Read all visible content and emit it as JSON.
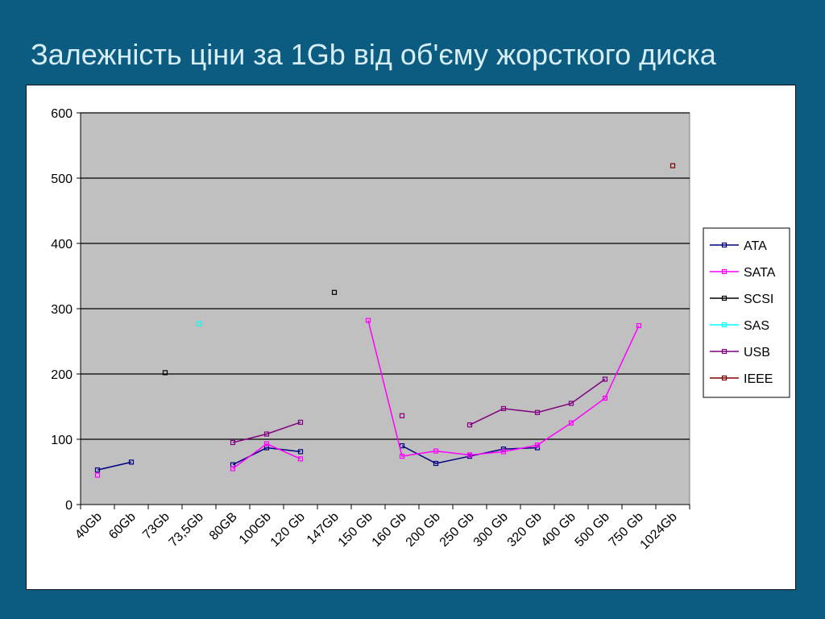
{
  "slide": {
    "title": "Залежність ціни за 1Gb  від об'єму жорсткого диска"
  },
  "chart_data": {
    "type": "line",
    "categories": [
      "40Gb",
      "60Gb",
      "73Gb",
      "73,5Gb",
      "80GB",
      "100Gb",
      "120 Gb",
      "147Gb",
      "150 Gb",
      "160 Gb",
      "200 Gb",
      "250 Gb",
      "300 Gb",
      "320 Gb",
      "400 Gb",
      "500 Gb",
      "750 Gb",
      "1024Gb"
    ],
    "ylim": [
      0,
      600
    ],
    "y_ticks": [
      0,
      100,
      200,
      300,
      400,
      500,
      600
    ],
    "grid": true,
    "plot_background": "#c0c0c0",
    "legend_position": "right",
    "series": [
      {
        "name": "ATA",
        "color": "#000080",
        "values": [
          53,
          65,
          null,
          null,
          61,
          87,
          81,
          null,
          null,
          90,
          63,
          74,
          85,
          87,
          null,
          null,
          null,
          null
        ]
      },
      {
        "name": "SATA",
        "color": "#ff00ff",
        "values": [
          45,
          null,
          null,
          null,
          55,
          93,
          70,
          null,
          282,
          74,
          82,
          76,
          81,
          91,
          125,
          163,
          274,
          null
        ]
      },
      {
        "name": "SCSI",
        "color": "#000000",
        "values": [
          null,
          null,
          202,
          null,
          null,
          null,
          null,
          325,
          null,
          null,
          null,
          null,
          null,
          null,
          null,
          null,
          null,
          null
        ]
      },
      {
        "name": "SAS",
        "color": "#00ffff",
        "values": [
          null,
          null,
          null,
          277,
          null,
          null,
          null,
          null,
          null,
          null,
          null,
          null,
          null,
          null,
          null,
          null,
          null,
          null
        ]
      },
      {
        "name": "USB",
        "color": "#800080",
        "values": [
          null,
          null,
          null,
          null,
          95,
          108,
          126,
          null,
          null,
          136,
          null,
          122,
          147,
          141,
          155,
          192,
          null,
          null
        ]
      },
      {
        "name": "IEEE",
        "color": "#800000",
        "values": [
          null,
          null,
          null,
          null,
          null,
          null,
          null,
          null,
          null,
          null,
          null,
          null,
          null,
          null,
          null,
          null,
          null,
          519
        ]
      }
    ]
  }
}
